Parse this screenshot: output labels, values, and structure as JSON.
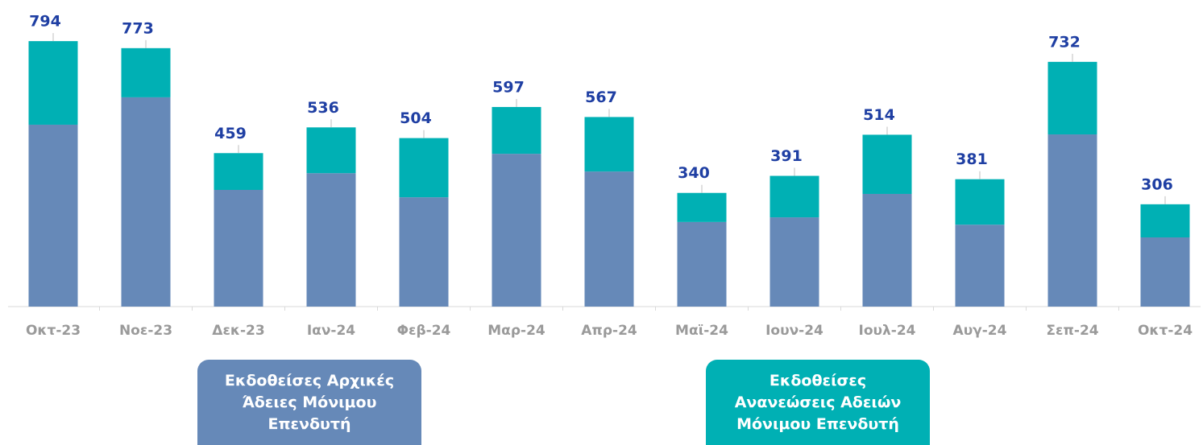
{
  "chart_data": {
    "type": "stacked_bar",
    "categories": [
      "Οκτ-23",
      "Νοε-23",
      "Δεκ-23",
      "Ιαν-24",
      "Φεβ-24",
      "Μαρ-24",
      "Απρ-24",
      "Μαϊ-24",
      "Ιουν-24",
      "Ιουλ-24",
      "Αυγ-24",
      "Σεπ-24",
      "Οκτ-24"
    ],
    "series": [
      {
        "name": "Εκδοθείσες Αρχικές Άδειες Μόνιμου Επενδυτή",
        "color": "#6689b8",
        "values": [
          544,
          626,
          349,
          399,
          327,
          457,
          404,
          253,
          267,
          337,
          245,
          515,
          207
        ]
      },
      {
        "name": "Εκδοθείσες Ανανεώσεις Αδειών Μόνιμου Επενδυτή",
        "color": "#00b0b4",
        "values": [
          250,
          147,
          110,
          137,
          177,
          140,
          163,
          87,
          124,
          177,
          136,
          217,
          99
        ]
      }
    ],
    "totals": [
      794,
      773,
      459,
      536,
      504,
      597,
      567,
      340,
      391,
      514,
      381,
      732,
      306
    ],
    "ylim": [
      0,
      917
    ]
  }
}
